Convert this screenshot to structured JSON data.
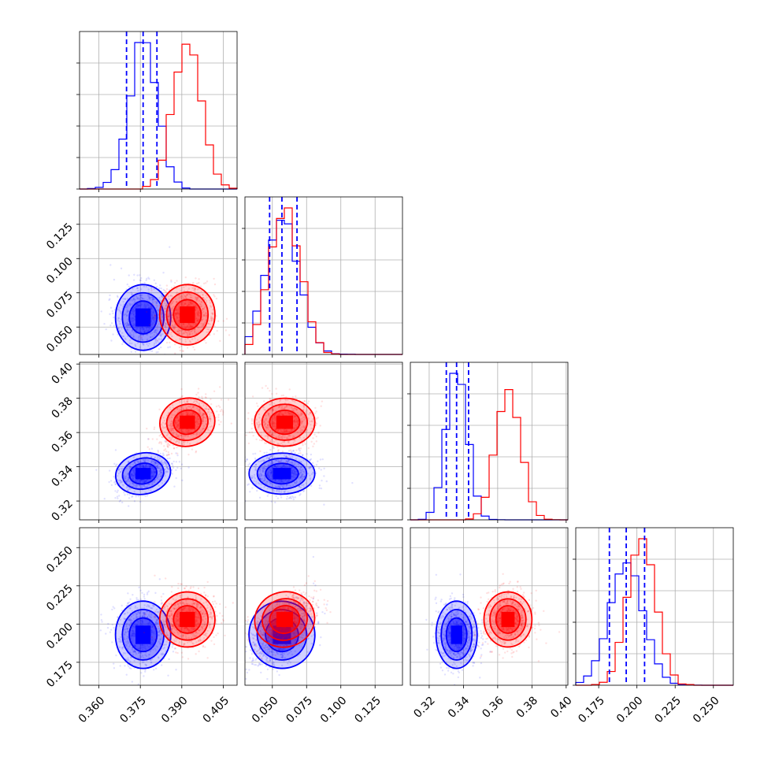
{
  "colors": {
    "series_a": "#0000ff",
    "series_b": "#ff0000",
    "grid": "#b0b0b0",
    "frame": "#000000"
  },
  "chart_data": {
    "type": "corner",
    "grid": true,
    "n_params": 4,
    "param_ranges": [
      [
        0.353,
        0.41
      ],
      [
        0.03,
        0.145
      ],
      [
        0.309,
        0.401
      ],
      [
        0.16,
        0.263
      ]
    ],
    "param_ticks": [
      [
        "0.360",
        "0.375",
        "0.390",
        "0.405"
      ],
      [
        "0.050",
        "0.075",
        "0.100",
        "0.125"
      ],
      [
        "0.32",
        "0.34",
        "0.36",
        "0.38",
        "0.40"
      ],
      [
        "0.175",
        "0.200",
        "0.225",
        "0.250"
      ]
    ],
    "series": [
      {
        "color": "#0000ff",
        "mean": [
          0.376,
          0.057,
          0.336,
          0.193
        ],
        "sd": [
          0.005,
          0.012,
          0.006,
          0.011
        ],
        "quantiles": [
          [
            0.37,
            0.376,
            0.381
          ],
          [
            0.048,
            0.057,
            0.068
          ],
          [
            0.33,
            0.336,
            0.343
          ],
          [
            0.182,
            0.193,
            0.205
          ]
        ],
        "corr": {
          "1-0": 0.0,
          "2-0": 0.45,
          "2-1": 0.0,
          "3-0": 0.0,
          "3-1": 0.55,
          "3-2": 0.0
        }
      },
      {
        "color": "#ff0000",
        "mean": [
          0.392,
          0.059,
          0.366,
          0.203
        ],
        "sd": [
          0.005,
          0.011,
          0.007,
          0.009
        ],
        "quantiles": [],
        "corr": {
          "1-0": 0.0,
          "2-0": 0.45,
          "2-1": 0.0,
          "3-0": 0.0,
          "3-1": 0.55,
          "3-2": 0.0
        }
      }
    ]
  }
}
